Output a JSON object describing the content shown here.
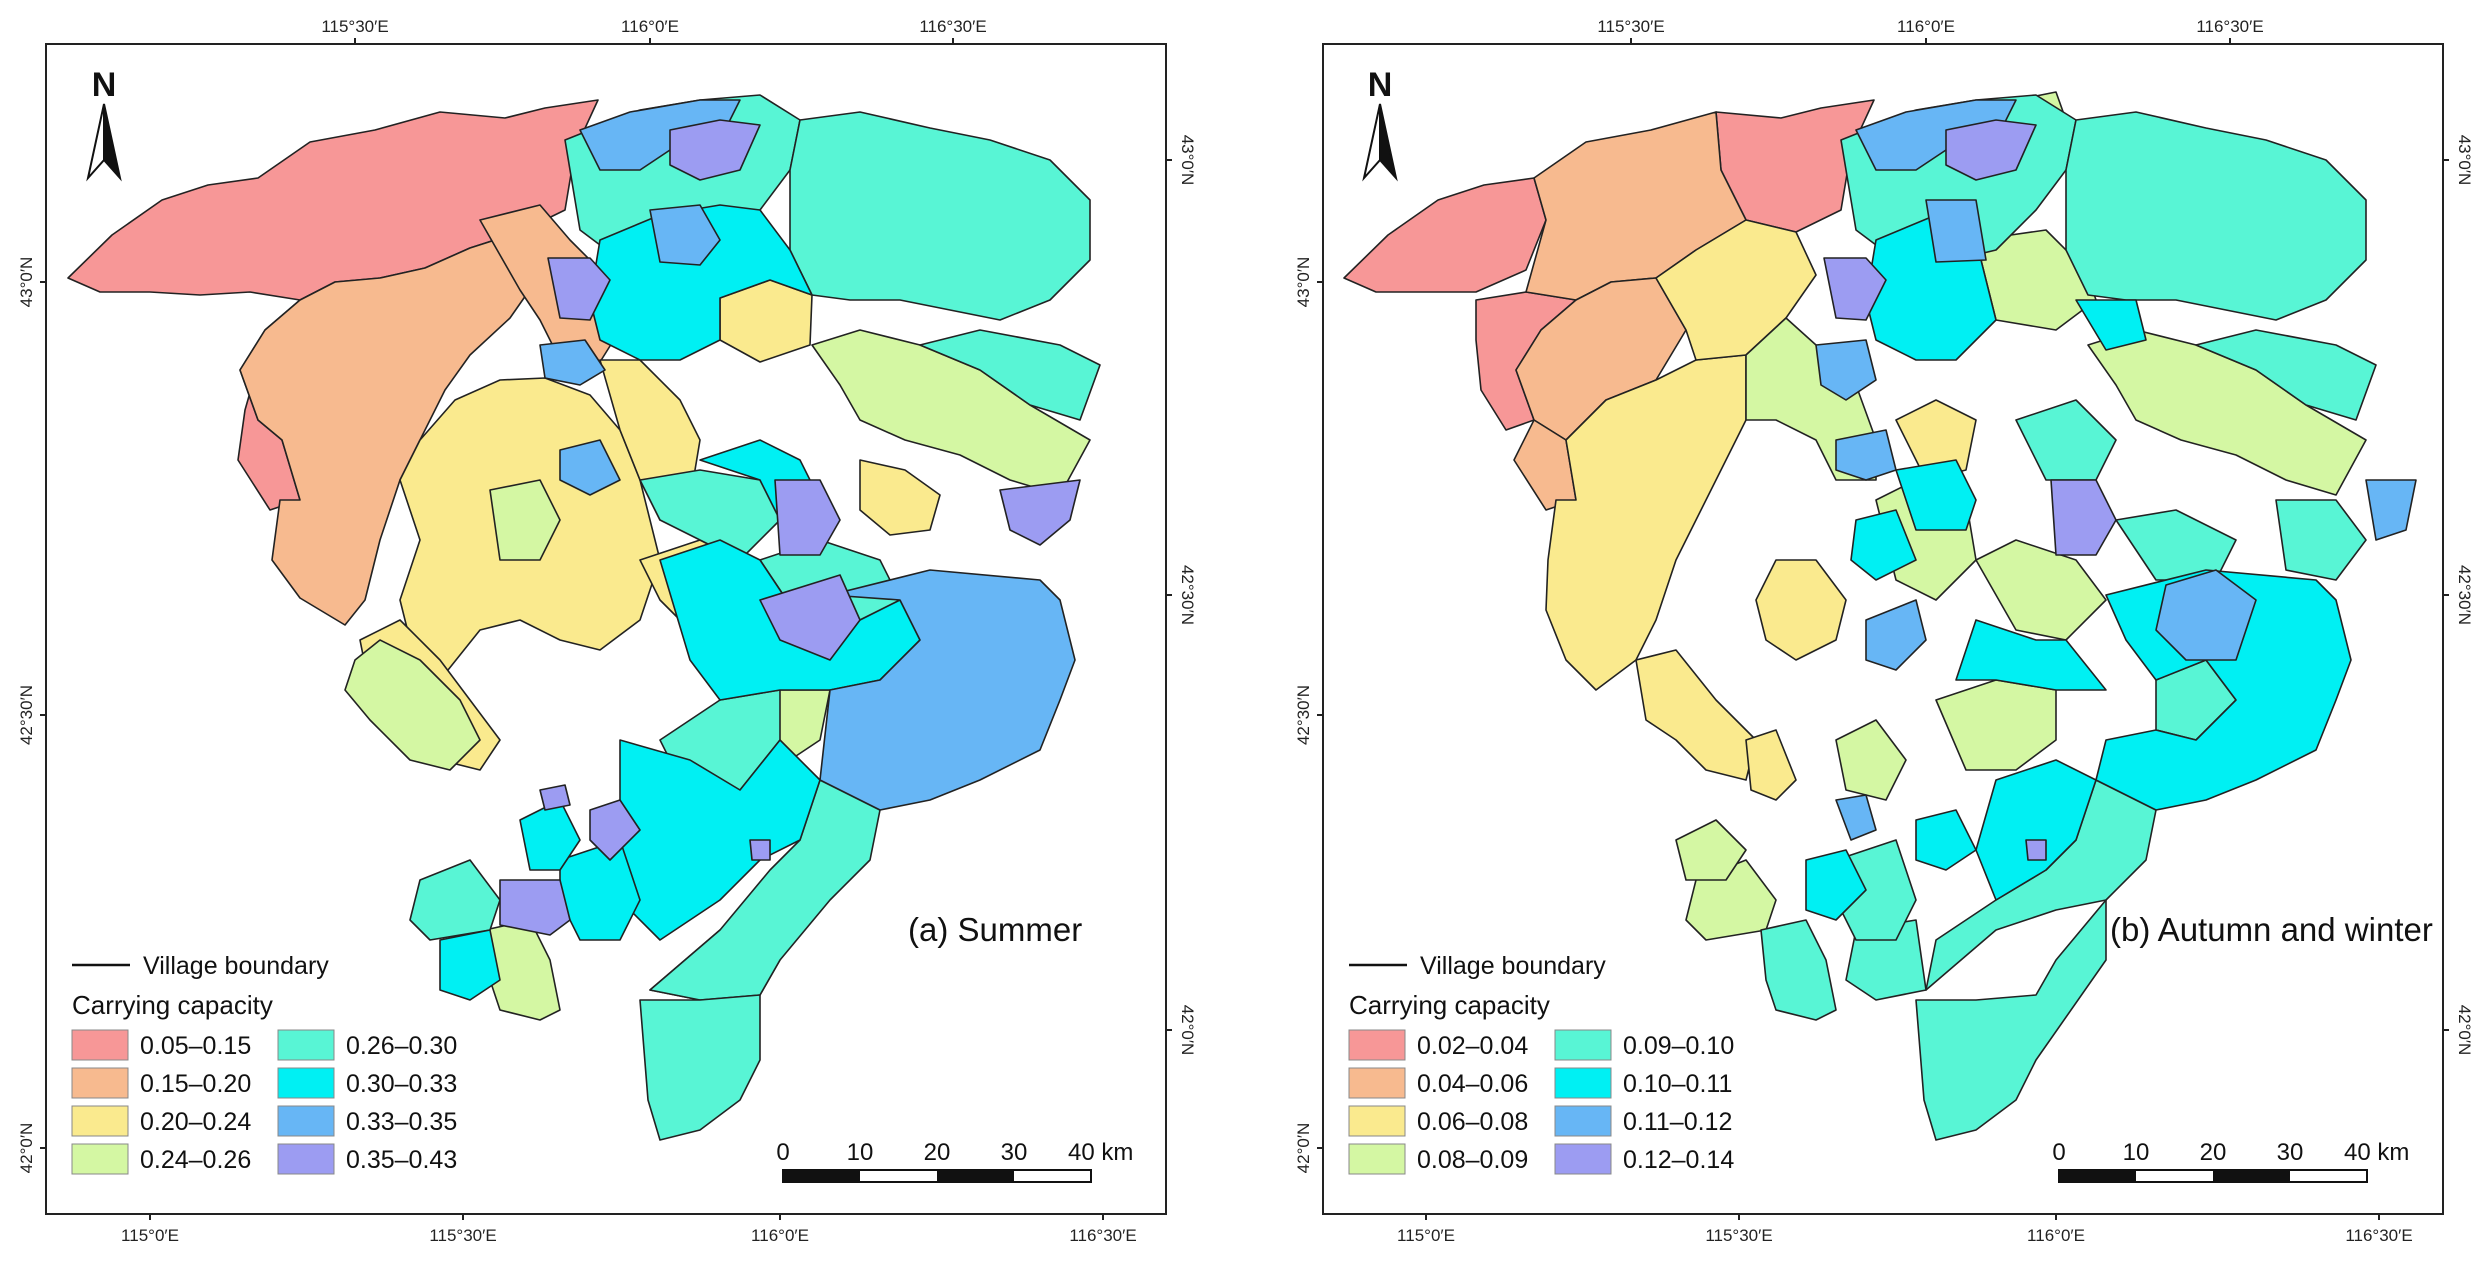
{
  "panels": [
    {
      "id": "a",
      "title": "(a) Summer",
      "top_ticks": [
        "115°30′E",
        "116°0′E",
        "116°30′E"
      ],
      "bottom_ticks": [
        "115°0′E",
        "115°30′E",
        "116°0′E",
        "116°30′E"
      ],
      "left_ticks": [
        "43°0′N",
        "42°30′N",
        "42°0′N"
      ],
      "right_ticks": [
        "43°0′N",
        "42°30′N",
        "42°0′N"
      ],
      "north_label": "N",
      "boundary_label": "Village boundary",
      "legend_title": "Carrying capacity",
      "legend": [
        {
          "label": "0.05–0.15",
          "color": "#F79797"
        },
        {
          "label": "0.15–0.20",
          "color": "#F7BA8F"
        },
        {
          "label": "0.20–0.24",
          "color": "#FAEA8E"
        },
        {
          "label": "0.24–0.26",
          "color": "#D4F7A3"
        },
        {
          "label": "0.26–0.30",
          "color": "#58F5D5"
        },
        {
          "label": "0.30–0.33",
          "color": "#00F0F3"
        },
        {
          "label": "0.33–0.35",
          "color": "#67B6F5"
        },
        {
          "label": "0.35–0.43",
          "color": "#9C9CF2"
        }
      ],
      "scale_labels": [
        "0",
        "10",
        "20",
        "30",
        "40 km"
      ]
    },
    {
      "id": "b",
      "title": "(b) Autumn and winter",
      "top_ticks": [
        "115°30′E",
        "116°0′E",
        "116°30′E"
      ],
      "bottom_ticks": [
        "115°0′E",
        "115°30′E",
        "116°0′E",
        "116°30′E"
      ],
      "left_ticks": [
        "43°0′N",
        "42°30′N",
        "42°0′N"
      ],
      "right_ticks": [
        "43°0′N",
        "42°30′N",
        "42°0′N"
      ],
      "north_label": "N",
      "boundary_label": "Village boundary",
      "legend_title": "Carrying capacity",
      "legend": [
        {
          "label": "0.02–0.04",
          "color": "#F79797"
        },
        {
          "label": "0.04–0.06",
          "color": "#F7BA8F"
        },
        {
          "label": "0.06–0.08",
          "color": "#FAEA8E"
        },
        {
          "label": "0.08–0.09",
          "color": "#D4F7A3"
        },
        {
          "label": "0.09–0.10",
          "color": "#58F5D5"
        },
        {
          "label": "0.10–0.11",
          "color": "#00F0F3"
        },
        {
          "label": "0.11–0.12",
          "color": "#67B6F5"
        },
        {
          "label": "0.12–0.14",
          "color": "#9C9CF2"
        }
      ],
      "scale_labels": [
        "0",
        "10",
        "20",
        "30",
        "40 km"
      ]
    }
  ]
}
